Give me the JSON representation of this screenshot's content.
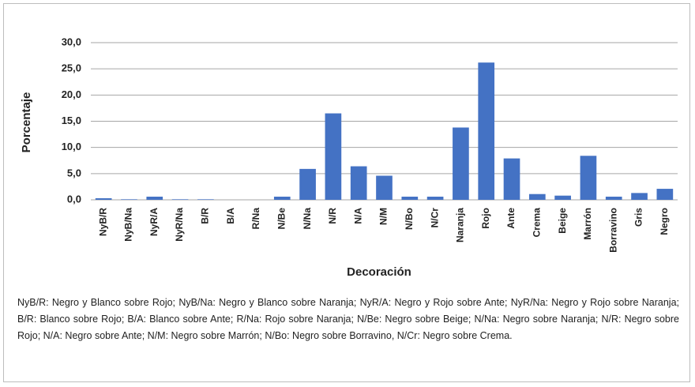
{
  "chart_data": {
    "type": "bar",
    "ylabel": "Porcentaje",
    "xlabel": "Decoración",
    "categories": [
      "NyB/R",
      "NyB/Na",
      "NyR/A",
      "NyR/Na",
      "B/R",
      "B/A",
      "R/Na",
      "N/Be",
      "N/Na",
      "N/R",
      "N/A",
      "N/M",
      "N/Bo",
      "N/Cr",
      "Naranja",
      "Rojo",
      "Ante",
      "Crema",
      "Beige",
      "Marrón",
      "Borravino",
      "Gris",
      "Negro"
    ],
    "values": [
      0.3,
      0.1,
      0.6,
      0.1,
      0.1,
      0.0,
      0.0,
      0.6,
      5.9,
      16.5,
      6.4,
      4.6,
      0.6,
      0.6,
      13.8,
      26.2,
      7.9,
      1.1,
      0.8,
      8.4,
      0.6,
      1.3,
      2.1
    ],
    "color": "#4472c4",
    "ylim": [
      0,
      30
    ],
    "yticks": [
      {
        "value": 0,
        "label": "0,0"
      },
      {
        "value": 5,
        "label": "5,0"
      },
      {
        "value": 10,
        "label": "10,0"
      },
      {
        "value": 15,
        "label": "15,0"
      },
      {
        "value": 20,
        "label": "20,0"
      },
      {
        "value": 25,
        "label": "25,0"
      },
      {
        "value": 30,
        "label": "30,0"
      }
    ],
    "grid": true,
    "note": "NyB/R: Negro y Blanco sobre Rojo; NyB/Na: Negro y Blanco sobre Naranja; NyR/A: Negro y Rojo sobre Ante; NyR/Na: Negro y Rojo sobre Naranja; B/R: Blanco sobre Rojo; B/A: Blanco sobre Ante; R/Na: Rojo sobre Naranja; N/Be: Negro sobre Beige; N/Na: Negro sobre Naranja; N/R: Negro sobre Rojo; N/A: Negro sobre Ante; N/M: Negro sobre Marrón; N/Bo: Negro sobre Borravino, N/Cr: Negro sobre Crema."
  }
}
